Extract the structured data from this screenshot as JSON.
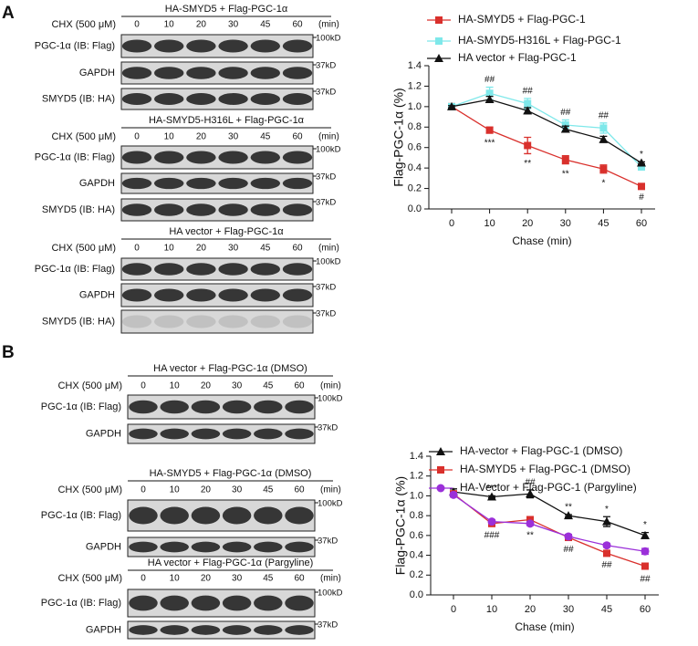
{
  "panels": [
    {
      "label": "A",
      "blots": [
        {
          "title": "HA-SMYD5 + Flag-PGC-1α",
          "chx": "CHX (500 μM)",
          "lanes": [
            "0",
            "10",
            "20",
            "30",
            "45",
            "60"
          ],
          "unit": "(min)",
          "rows": [
            {
              "label": "PGC-1α (IB: Flag)",
              "marker": "100kD"
            },
            {
              "label": "GAPDH",
              "marker": "37kD"
            },
            {
              "label": "SMYD5 (IB: HA)",
              "marker": "37kD"
            }
          ]
        },
        {
          "title": "HA-SMYD5-H316L + Flag-PGC-1α",
          "chx": "CHX (500 μM)",
          "lanes": [
            "0",
            "10",
            "20",
            "30",
            "45",
            "60"
          ],
          "unit": "(min)",
          "rows": [
            {
              "label": "PGC-1α (IB: Flag)",
              "marker": "100kD"
            },
            {
              "label": "GAPDH",
              "marker": "37kD"
            },
            {
              "label": "SMYD5 (IB: HA)",
              "marker": "37kD"
            }
          ]
        },
        {
          "title": "HA vector + Flag-PGC-1α",
          "chx": "CHX (500 μM)",
          "lanes": [
            "0",
            "10",
            "20",
            "30",
            "45",
            "60"
          ],
          "unit": "(min)",
          "rows": [
            {
              "label": "PGC-1α (IB: Flag)",
              "marker": "100kD"
            },
            {
              "label": "GAPDH",
              "marker": "37kD"
            },
            {
              "label": "SMYD5 (IB: HA)",
              "marker": "37kD"
            }
          ]
        }
      ]
    },
    {
      "label": "B",
      "blots": [
        {
          "title": "HA vector + Flag-PGC-1α (DMSO)",
          "chx": "CHX (500 μM)",
          "lanes": [
            "0",
            "10",
            "20",
            "30",
            "45",
            "60"
          ],
          "unit": "(min)",
          "rows": [
            {
              "label": "PGC-1α (IB: Flag)",
              "marker": "100kD"
            },
            {
              "label": "GAPDH",
              "marker": "37kD"
            }
          ]
        },
        {
          "title": "HA-SMYD5 + Flag-PGC-1α (DMSO)",
          "chx": "CHX (500 μM)",
          "lanes": [
            "0",
            "10",
            "20",
            "30",
            "45",
            "60"
          ],
          "unit": "(min)",
          "rows": [
            {
              "label": "PGC-1α (IB: Flag)",
              "marker": "100kD"
            },
            {
              "label": "GAPDH",
              "marker": "37kD"
            }
          ]
        },
        {
          "title": "HA vector + Flag-PGC-1α (Pargyline)",
          "chx": "CHX (500 μM)",
          "lanes": [
            "0",
            "10",
            "20",
            "30",
            "45",
            "60"
          ],
          "unit": "(min)",
          "rows": [
            {
              "label": "PGC-1α (IB: Flag)",
              "marker": "100kD"
            },
            {
              "label": "GAPDH",
              "marker": "37kD"
            }
          ]
        }
      ]
    }
  ],
  "chart_data": [
    {
      "type": "line",
      "y_label": "Flag-PGC-1α (%)",
      "x_label": "Chase (min)",
      "categories": [
        "0",
        "10",
        "20",
        "30",
        "45",
        "60"
      ],
      "ylim": [
        0,
        1.4
      ],
      "yticks": [
        {
          "value": 0,
          "label": "0.0"
        },
        0.2,
        0.4,
        0.6,
        0.8,
        {
          "value": 1,
          "label": "1.0"
        },
        1.2,
        1.4
      ],
      "series": [
        {
          "name": "HA-SMYD5 + Flag-PGC-1",
          "color": "#d9302c",
          "marker": "square",
          "values": [
            1.0,
            0.77,
            0.62,
            0.48,
            0.39,
            0.22
          ],
          "errors": [
            0.01,
            0.03,
            0.08,
            0.04,
            0.04,
            0.01
          ]
        },
        {
          "name": "HA-SMYD5-H316L + Flag-PGC-1",
          "color": "#7ee8ea",
          "marker": "square",
          "values": [
            1.0,
            1.13,
            1.03,
            0.82,
            0.79,
            0.41
          ],
          "errors": [
            0.01,
            0.06,
            0.05,
            0.05,
            0.05,
            0.02
          ]
        },
        {
          "name": "HA vector + Flag-PGC-1",
          "color": "#111111",
          "marker": "triangle",
          "values": [
            1.0,
            1.07,
            0.96,
            0.78,
            0.68,
            0.45
          ],
          "errors": [
            0.01,
            0.03,
            0.03,
            0.03,
            0.03,
            0.01
          ]
        }
      ],
      "annotations_above": [
        null,
        "##",
        "##",
        "##",
        "##",
        "*"
      ],
      "annotations_below": [
        null,
        "***",
        "**",
        "**",
        "*",
        "#"
      ]
    },
    {
      "type": "line",
      "y_label": "Flag-PGC-1α (%)",
      "x_label": "Chase (min)",
      "categories": [
        "0",
        "10",
        "20",
        "30",
        "45",
        "60"
      ],
      "ylim": [
        0,
        1.4
      ],
      "yticks": [
        {
          "value": 0,
          "label": "0.0"
        },
        0.2,
        0.4,
        0.6,
        0.8,
        {
          "value": 1,
          "label": "1.0"
        },
        1.2,
        1.4
      ],
      "series": [
        {
          "name": "HA-vector + Flag-PGC-1 (DMSO)",
          "color": "#111111",
          "marker": "triangle",
          "values": [
            1.04,
            0.99,
            1.02,
            0.8,
            0.74,
            0.6
          ],
          "errors": [
            0.03,
            0.01,
            0.04,
            0.01,
            0.05,
            0.03
          ]
        },
        {
          "name": "HA-SMYD5 + Flag-PGC-1 (DMSO)",
          "color": "#d9302c",
          "marker": "square",
          "values": [
            1.02,
            0.72,
            0.76,
            0.58,
            0.42,
            0.29
          ],
          "errors": [
            0.03,
            0.02,
            0.03,
            0.02,
            0.02,
            0.03
          ]
        },
        {
          "name": "HA-Vector + Flag-PGC-1 (Pargyline)",
          "color": "#9b30d9",
          "marker": "circle",
          "values": [
            1.01,
            0.74,
            0.72,
            0.59,
            0.5,
            0.44
          ],
          "errors": [
            0.02,
            0.02,
            0.02,
            0.02,
            0.02,
            0.03
          ]
        }
      ],
      "annotations_above": [
        null,
        "***",
        "##",
        "**",
        "*",
        "*"
      ],
      "annotations_below": [
        null,
        "###",
        "**",
        "##",
        "##",
        "##"
      ]
    }
  ]
}
